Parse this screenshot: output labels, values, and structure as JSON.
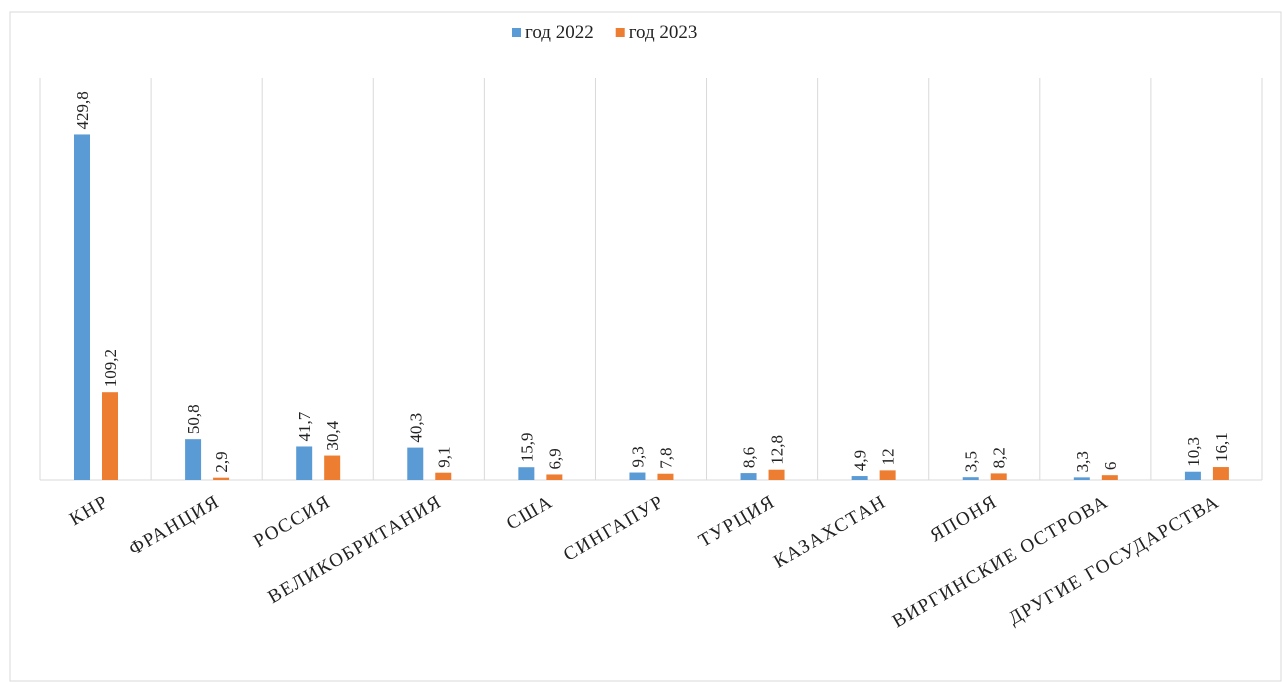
{
  "chart_data": {
    "type": "bar",
    "categories": [
      "КНР",
      "ФРАНЦИЯ",
      "РОССИЯ",
      "ВЕЛИКОБРИТАНИЯ",
      "США",
      "СИНГАПУР",
      "ТУРЦИЯ",
      "КАЗАХСТАН",
      "ЯПОНЯ",
      "ВИРГИНСКИЕ ОСТРОВА",
      "ДРУГИЕ ГОСУДАРСТВА"
    ],
    "series": [
      {
        "name": "год 2022",
        "color": "#5b9bd5",
        "values": [
          429.8,
          50.8,
          41.7,
          40.3,
          15.9,
          9.3,
          8.6,
          4.9,
          3.5,
          3.3,
          10.3
        ],
        "value_labels": [
          "429,8",
          "50,8",
          "41,7",
          "40,3",
          "15,9",
          "9,3",
          "8,6",
          "4,9",
          "3,5",
          "3,3",
          "10,3"
        ]
      },
      {
        "name": "год 2023",
        "color": "#ed7d31",
        "values": [
          109.2,
          2.9,
          30.4,
          9.1,
          6.9,
          7.8,
          12.8,
          12,
          8.2,
          6,
          16.1
        ],
        "value_labels": [
          "109,2",
          "2,9",
          "30,4",
          "9,1",
          "6,9",
          "7,8",
          "12,8",
          "12",
          "8,2",
          "6",
          "16,1"
        ]
      }
    ],
    "ylim": [
      0,
      500
    ],
    "legend": "top"
  }
}
